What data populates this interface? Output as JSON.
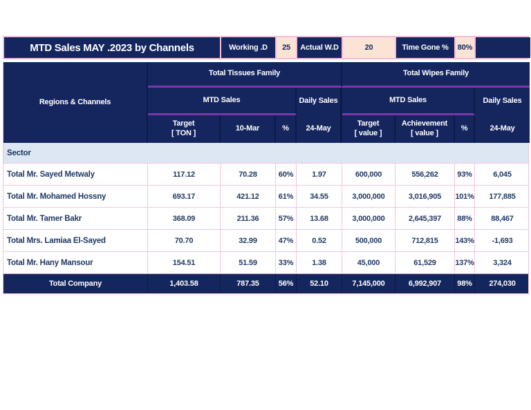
{
  "title_bar": {
    "title": "MTD Sales MAY .2023 by Channels",
    "working_days_label": "Working .D",
    "working_days_value": "25",
    "actual_wd_label": "Actual W.D",
    "actual_wd_value": "20",
    "time_gone_label": "Time Gone %",
    "time_gone_value": "80%"
  },
  "colors": {
    "navy": "#15265e",
    "peach_fill": "#fbe3d6",
    "pink_border": "#f3bcd8",
    "purple_accent": "#7b36ad",
    "sector_band": "#dce7f3",
    "body_text": "#1f3864"
  },
  "table": {
    "regions_header": "Regions & Channels",
    "family_tissues": "Total Tissues Family",
    "family_wipes": "Total Wipes Family",
    "mtd_sales_label": "MTD Sales",
    "daily_sales_label": "Daily Sales",
    "columns": {
      "target_ton_1": "Target",
      "target_ton_2": "[ TON ]",
      "achievement_ton": "10-Mar",
      "pct_tissues": "%",
      "daily_tissues": "24-May",
      "target_value_1": "Target",
      "target_value_2": "[ value ]",
      "achievement_value_1": "Achievement",
      "achievement_value_2": "[ value ]",
      "pct_wipes": "%",
      "daily_wipes": "24-May"
    },
    "section_label": "Sector",
    "rows": [
      {
        "name": "Total Mr. Sayed Metwaly",
        "values": [
          "117.12",
          "70.28",
          "60%",
          "1.97",
          "600,000",
          "556,262",
          "93%",
          "6,045"
        ]
      },
      {
        "name": "Total Mr. Mohamed Hossny",
        "values": [
          "693.17",
          "421.12",
          "61%",
          "34.55",
          "3,000,000",
          "3,016,905",
          "101%",
          "177,885"
        ]
      },
      {
        "name": "Total Mr. Tamer Bakr",
        "values": [
          "368.09",
          "211.36",
          "57%",
          "13.68",
          "3,000,000",
          "2,645,397",
          "88%",
          "88,467"
        ]
      },
      {
        "name": "Total Mrs. Lamiaa El-Sayed",
        "values": [
          "70.70",
          "32.99",
          "47%",
          "0.52",
          "500,000",
          "712,815",
          "143%",
          "-1,693"
        ]
      },
      {
        "name": "Total Mr. Hany Mansour",
        "values": [
          "154.51",
          "51.59",
          "33%",
          "1.38",
          "45,000",
          "61,529",
          "137%",
          "3,324"
        ]
      }
    ],
    "total_row": {
      "name": "Total Company",
      "values": [
        "1,403.58",
        "787.35",
        "56%",
        "52.10",
        "7,145,000",
        "6,992,907",
        "98%",
        "274,030"
      ]
    }
  }
}
